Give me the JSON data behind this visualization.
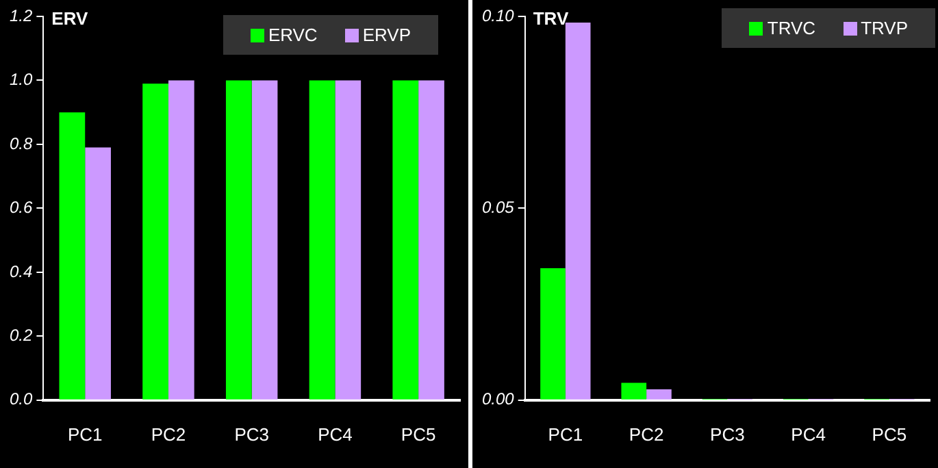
{
  "chart_data": [
    {
      "type": "bar",
      "title": "ERV",
      "categories": [
        "PC1",
        "PC2",
        "PC3",
        "PC4",
        "PC5"
      ],
      "series": [
        {
          "name": "ERVC",
          "color": "#00ff00",
          "values": [
            0.9,
            0.99,
            1.0,
            1.0,
            1.0
          ]
        },
        {
          "name": "ERVP",
          "color": "#cc99ff",
          "values": [
            0.79,
            1.0,
            1.0,
            1.0,
            1.0
          ]
        }
      ],
      "ylim": [
        0,
        1.2
      ],
      "yticks": [
        {
          "value": 0,
          "label": "0.0"
        },
        {
          "value": 0.2,
          "label": "0.2"
        },
        {
          "value": 0.4,
          "label": "0.4"
        },
        {
          "value": 0.6,
          "label": "0.6"
        },
        {
          "value": 0.8,
          "label": "0.8"
        },
        {
          "value": 1,
          "label": "1.0"
        },
        {
          "value": 1.2,
          "label": "1.2"
        }
      ],
      "grid": false,
      "legend": "top right"
    },
    {
      "type": "bar",
      "title": "TRV",
      "categories": [
        "PC1",
        "PC2",
        "PC3",
        "PC4",
        "PC5"
      ],
      "series": [
        {
          "name": "TRVC",
          "color": "#00ff00",
          "values": [
            0.0344,
            0.0045,
            0.0003,
            0.0003,
            0.0003
          ]
        },
        {
          "name": "TRVP",
          "color": "#cc99ff",
          "values": [
            0.0984,
            0.0028,
            0.0003,
            0.0003,
            0.0003
          ]
        }
      ],
      "ylim": [
        0,
        0.1
      ],
      "yticks": [
        {
          "value": 0,
          "label": "0.00"
        },
        {
          "value": 0.05,
          "label": "0.05"
        },
        {
          "value": 0.1,
          "label": "0.10"
        }
      ],
      "grid": false,
      "legend": "top right"
    }
  ]
}
